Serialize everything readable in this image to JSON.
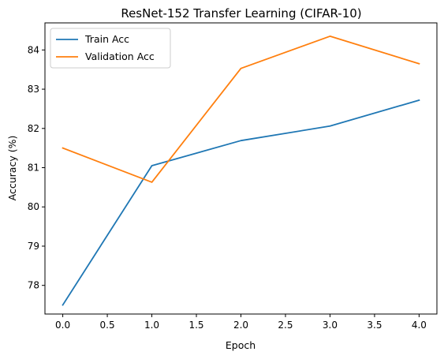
{
  "chart_data": {
    "type": "line",
    "title": "ResNet-152 Transfer Learning (CIFAR-10)",
    "xlabel": "Epoch",
    "ylabel": "Accuracy (%)",
    "x": [
      0,
      1,
      2,
      3,
      4
    ],
    "xlim": [
      -0.2,
      4.2
    ],
    "ylim": [
      77.27,
      84.69
    ],
    "xticks": [
      "0.0",
      "0.5",
      "1.0",
      "1.5",
      "2.0",
      "2.5",
      "3.0",
      "3.5",
      "4.0"
    ],
    "xtick_values": [
      0,
      0.5,
      1,
      1.5,
      2,
      2.5,
      3,
      3.5,
      4
    ],
    "yticks": [
      "78",
      "79",
      "80",
      "81",
      "82",
      "83",
      "84"
    ],
    "ytick_values": [
      78,
      79,
      80,
      81,
      82,
      83,
      84
    ],
    "grid": false,
    "legend": "top-left",
    "series": [
      {
        "name": "Train Acc",
        "color": "#1f77b4",
        "values": [
          77.5,
          81.05,
          81.69,
          82.06,
          82.72
        ]
      },
      {
        "name": "Validation Acc",
        "color": "#ff7f0e",
        "values": [
          81.5,
          80.63,
          83.53,
          84.35,
          83.65
        ]
      }
    ]
  }
}
